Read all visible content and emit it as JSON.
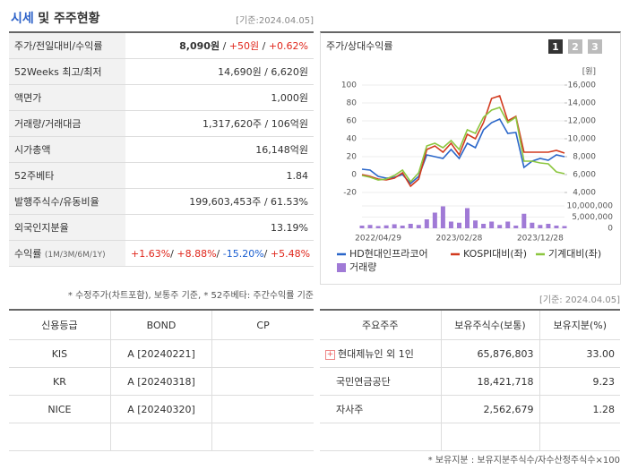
{
  "header": {
    "title_main": "시세",
    "title_rest": "및 주주현황",
    "date": "[기준:2024.04.05]"
  },
  "quote": {
    "rows": [
      {
        "label": "주가/전일대비/수익률",
        "parts": [
          "8,090원",
          " / ",
          "+50원",
          " / ",
          "+0.62%"
        ]
      },
      {
        "label": "52Weeks 최고/최저",
        "parts": [
          "14,690원 / 6,620원"
        ]
      },
      {
        "label": "액면가",
        "parts": [
          "1,000원"
        ]
      },
      {
        "label": "거래량/거래대금",
        "parts": [
          "1,317,620주 / 106억원"
        ]
      },
      {
        "label": "시가총액",
        "parts": [
          "16,148억원"
        ]
      },
      {
        "label": "52주베타",
        "parts": [
          "1.84"
        ]
      },
      {
        "label": "발행주식수/유동비율",
        "parts": [
          "199,603,453주 / 61.53%"
        ]
      },
      {
        "label": "외국인지분율",
        "parts": [
          "13.19%"
        ]
      },
      {
        "label": "수익률",
        "sublabel": "(1M/3M/6M/1Y)",
        "parts": [
          "+1.63%",
          "/ ",
          "+8.88%",
          "/ ",
          "-15.20%",
          "/ ",
          "+5.48%"
        ]
      }
    ],
    "note": "* 수정주가(차트포함), 보통주 기준, * 52주베타: 주간수익률 기준"
  },
  "credit": {
    "headers": [
      "신용등급",
      "BOND",
      "CP"
    ],
    "rows": [
      [
        "KIS",
        "A  [20240221]",
        ""
      ],
      [
        "KR",
        "A  [20240318]",
        ""
      ],
      [
        "NICE",
        "A  [20240320]",
        ""
      ]
    ]
  },
  "holders": {
    "date": "[기준: 2024.04.05]",
    "headers": [
      "주요주주",
      "보유주식수(보통)",
      "보유지분(%)"
    ],
    "rows": [
      [
        "현대제뉴인 외 1인",
        "65,876,803",
        "33.00"
      ],
      [
        "국민연금공단",
        "18,421,718",
        "9.23"
      ],
      [
        "자사주",
        "2,562,679",
        "1.28"
      ]
    ],
    "note": "* 보유지분 : 보유지분주식수/자수산정주식수×100"
  },
  "chart_data": [
    {
      "type": "line",
      "title": "주가/상대수익률",
      "tabs": [
        "1",
        "2",
        "3"
      ],
      "y2_label": "[원]",
      "categories": [
        null,
        null,
        "2022/04/29",
        null,
        null,
        null,
        null,
        null,
        null,
        null,
        null,
        null,
        "2023/02/28",
        null,
        null,
        null,
        null,
        null,
        null,
        null,
        null,
        null,
        "2023/12/28",
        null,
        null,
        null
      ],
      "ylim": [
        -20,
        100
      ],
      "yticks": [
        -20,
        0,
        20,
        40,
        60,
        80,
        100
      ],
      "y2lim": [
        4000,
        16000
      ],
      "y2ticks": [
        {
          "value": 4000,
          "label": "4,000"
        },
        {
          "value": 6000,
          "label": "6,000"
        },
        {
          "value": 8000,
          "label": "8,000"
        },
        {
          "value": 10000,
          "label": "10,000"
        },
        {
          "value": 12000,
          "label": "12,000"
        },
        {
          "value": 14000,
          "label": "14,000"
        },
        {
          "value": 16000,
          "label": "16,000"
        }
      ],
      "series": [
        {
          "name": "HD현대인프라코어",
          "color": "#2a66c9",
          "values": [
            6,
            5,
            -2,
            -4,
            -3,
            0,
            -10,
            -2,
            22,
            20,
            18,
            28,
            18,
            35,
            30,
            50,
            58,
            62,
            46,
            47,
            8,
            15,
            18,
            16,
            22,
            20
          ]
        },
        {
          "name": "KOSPI대비(좌)",
          "color": "#d23a1e",
          "values": [
            0,
            -2,
            -5,
            -6,
            -4,
            2,
            -13,
            -5,
            28,
            32,
            25,
            35,
            22,
            45,
            40,
            58,
            85,
            88,
            60,
            65,
            25,
            25,
            25,
            25,
            27,
            24
          ]
        },
        {
          "name": "기계대비(좌)",
          "color": "#8cc63f",
          "values": [
            -1,
            -3,
            -6,
            -5,
            -1,
            5,
            -8,
            2,
            32,
            35,
            30,
            38,
            28,
            50,
            46,
            64,
            72,
            75,
            58,
            64,
            15,
            15,
            13,
            12,
            3,
            1
          ]
        }
      ]
    },
    {
      "type": "bar",
      "ylim": [
        0,
        10000000
      ],
      "yticks": [
        0,
        {
          "value": 5000000,
          "label": "5,000,000"
        },
        {
          "value": 10000000,
          "label": "10,000,000"
        }
      ],
      "series": [
        {
          "name": "거래량",
          "color": "#a07ad6",
          "values": [
            1200000,
            1500000,
            1000000,
            1300000,
            1800000,
            1200000,
            2000000,
            1500000,
            4000000,
            7000000,
            9800000,
            3000000,
            2500000,
            9000000,
            3500000,
            2000000,
            3000000,
            1500000,
            3000000,
            1200000,
            6500000,
            2500000,
            1500000,
            2000000,
            1200000,
            1000000
          ]
        }
      ]
    }
  ]
}
